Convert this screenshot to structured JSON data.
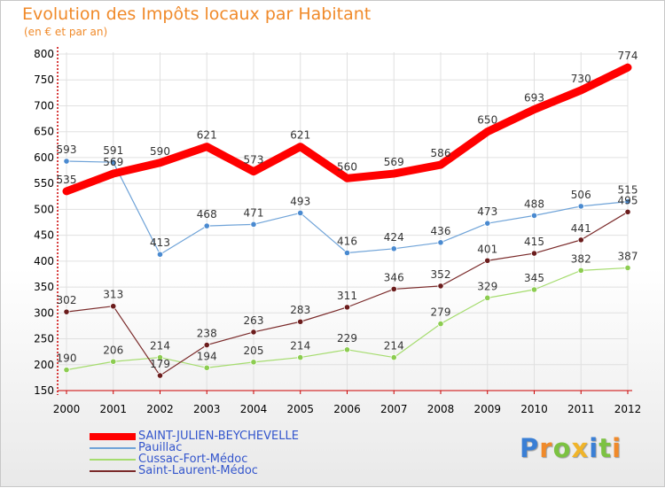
{
  "header": {
    "title": "Evolution des Impôts locaux par Habitant",
    "subtitle": "(en € et par an)"
  },
  "colors": {
    "title": "#f08a2a",
    "axis": "#cc0000",
    "grid": "#e0e0e0",
    "legend_text": "#3355cc"
  },
  "chart_data": {
    "type": "line",
    "title": "Evolution des Impôts locaux par Habitant",
    "subtitle": "(en € et par an)",
    "xlabel": "",
    "ylabel": "",
    "x": [
      "2000",
      "2001",
      "2002",
      "2003",
      "2004",
      "2005",
      "2006",
      "2007",
      "2008",
      "2009",
      "2010",
      "2011",
      "2012"
    ],
    "ylim": [
      150,
      800
    ],
    "yticks": [
      150,
      200,
      250,
      300,
      350,
      400,
      450,
      500,
      550,
      600,
      650,
      700,
      750,
      800
    ],
    "grid": true,
    "legend_position": "bottom",
    "series": [
      {
        "name": "SAINT-JULIEN-BEYCHEVELLE",
        "color": "#ff0000",
        "width": 9,
        "markers": false,
        "values": [
          535,
          569,
          590,
          621,
          573,
          621,
          560,
          569,
          586,
          650,
          693,
          730,
          774
        ]
      },
      {
        "name": "Pauillac",
        "color": "#6fa3d8",
        "width": 1.2,
        "markers": true,
        "marker_fill": "#4a8ad0",
        "values": [
          593,
          591,
          413,
          468,
          471,
          493,
          416,
          424,
          436,
          473,
          488,
          506,
          515
        ]
      },
      {
        "name": "Cussac-Fort-Médoc",
        "color": "#a5dc6e",
        "width": 1.2,
        "markers": true,
        "marker_fill": "#8ccc50",
        "values": [
          190,
          206,
          214,
          194,
          205,
          214,
          229,
          214,
          279,
          329,
          345,
          382,
          387
        ]
      },
      {
        "name": "Saint-Laurent-Médoc",
        "color": "#7a2a2a",
        "width": 1.2,
        "markers": true,
        "marker_fill": "#6b1c1c",
        "values": [
          302,
          313,
          179,
          238,
          263,
          283,
          311,
          346,
          352,
          401,
          415,
          441,
          495
        ]
      }
    ]
  },
  "logo": {
    "letters": [
      "P",
      "r",
      "o",
      "x",
      "i",
      "t",
      "i"
    ],
    "colors": [
      "#3a7fd5",
      "#f08a2a",
      "#7cc242",
      "#f0b429",
      "#3a7fd5",
      "#7cc242",
      "#f08a2a"
    ]
  }
}
